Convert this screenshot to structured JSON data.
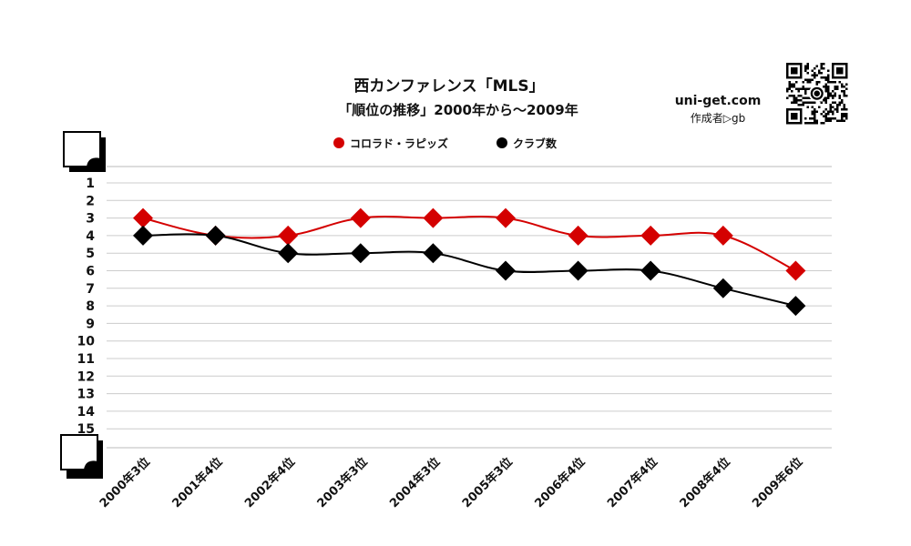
{
  "chart_data": {
    "type": "line",
    "title": "西カンファレンス「MLS」",
    "subtitle": "「順位の推移」2000年から～2009年",
    "categories": [
      "2000年3位",
      "2001年4位",
      "2002年4位",
      "2003年3位",
      "2004年3位",
      "2005年3位",
      "2006年4位",
      "2007年4位",
      "2008年4位",
      "2009年6位"
    ],
    "series": [
      {
        "name": "コロラド・ラピッズ",
        "color": "#d40000",
        "values": [
          3,
          4,
          4,
          3,
          3,
          3,
          4,
          4,
          4,
          6
        ]
      },
      {
        "name": "クラブ数",
        "color": "#000000",
        "values": [
          4,
          4,
          5,
          5,
          5,
          6,
          6,
          6,
          7,
          8
        ]
      }
    ],
    "yticks": [
      "1",
      "2",
      "3",
      "4",
      "5",
      "6",
      "7",
      "8",
      "9",
      "10",
      "11",
      "12",
      "13",
      "14",
      "15"
    ],
    "ylim": [
      1,
      15
    ],
    "y_inverted": true,
    "grid": true,
    "legend_position": "top-center"
  },
  "branding": {
    "site": "uni-get.com",
    "author": "作成者▷gb",
    "qr_icon": "qr-code-icon"
  }
}
